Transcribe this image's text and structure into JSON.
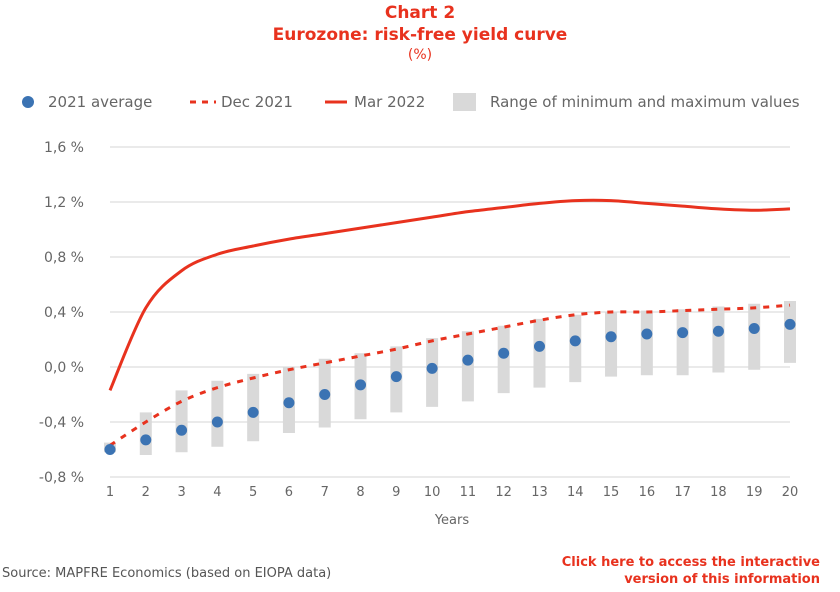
{
  "title": {
    "chart_number": "Chart 2",
    "name": "Eurozone: risk-free yield curve",
    "unit": "(%)"
  },
  "legend": [
    {
      "label": "2021 average",
      "style": "dot",
      "color": "#3b73b3"
    },
    {
      "label": "Dec 2021",
      "style": "dashed-line",
      "color": "#e8321e"
    },
    {
      "label": "Mar 2022",
      "style": "solid-line",
      "color": "#e8321e"
    },
    {
      "label": "Range of minimum and maximum values",
      "style": "bar",
      "color": "#d9d9d9"
    }
  ],
  "source": "Source: MAPFRE Economics (based on EIOPA data)",
  "link": {
    "line1": "Click here to access the interactive",
    "line2": "version of this information"
  },
  "chart_data": {
    "type": "line",
    "xlabel": "Years",
    "ylabel": "",
    "x": [
      1,
      2,
      3,
      4,
      5,
      6,
      7,
      8,
      9,
      10,
      11,
      12,
      13,
      14,
      15,
      16,
      17,
      18,
      19,
      20
    ],
    "ylim": [
      -0.8,
      1.6
    ],
    "yticks": [
      -0.8,
      -0.4,
      0.0,
      0.4,
      0.8,
      1.2,
      1.6
    ],
    "ytick_labels": [
      "-0,8 %",
      "-0,4 %",
      "0,0 %",
      "0,4 %",
      "0,8 %",
      "1,2 %",
      "1,6 %"
    ],
    "grid": true,
    "legend_position": "top",
    "series": [
      {
        "name": "2021 average",
        "kind": "scatter",
        "color": "#3b73b3",
        "values": [
          -0.6,
          -0.53,
          -0.46,
          -0.4,
          -0.33,
          -0.26,
          -0.2,
          -0.13,
          -0.07,
          -0.01,
          0.05,
          0.1,
          0.15,
          0.19,
          0.22,
          0.24,
          0.25,
          0.26,
          0.28,
          0.31
        ]
      },
      {
        "name": "Dec 2021",
        "kind": "dashed-line",
        "color": "#e8321e",
        "values": [
          -0.57,
          -0.4,
          -0.25,
          -0.15,
          -0.08,
          -0.02,
          0.03,
          0.08,
          0.13,
          0.19,
          0.24,
          0.29,
          0.34,
          0.38,
          0.4,
          0.4,
          0.41,
          0.42,
          0.43,
          0.45
        ]
      },
      {
        "name": "Mar 2022",
        "kind": "line",
        "color": "#e8321e",
        "values": [
          -0.17,
          0.43,
          0.7,
          0.82,
          0.88,
          0.93,
          0.97,
          1.01,
          1.05,
          1.09,
          1.13,
          1.16,
          1.19,
          1.21,
          1.21,
          1.19,
          1.17,
          1.15,
          1.14,
          1.15
        ]
      },
      {
        "name": "Range of minimum and maximum values",
        "kind": "range-bar",
        "color": "#d9d9d9",
        "min": [
          -0.62,
          -0.64,
          -0.62,
          -0.58,
          -0.54,
          -0.48,
          -0.44,
          -0.38,
          -0.33,
          -0.29,
          -0.25,
          -0.19,
          -0.15,
          -0.11,
          -0.07,
          -0.06,
          -0.06,
          -0.04,
          -0.02,
          0.03
        ],
        "max": [
          -0.55,
          -0.33,
          -0.17,
          -0.1,
          -0.05,
          0.0,
          0.06,
          0.1,
          0.15,
          0.21,
          0.26,
          0.3,
          0.35,
          0.38,
          0.4,
          0.41,
          0.42,
          0.44,
          0.46,
          0.48
        ]
      }
    ]
  }
}
